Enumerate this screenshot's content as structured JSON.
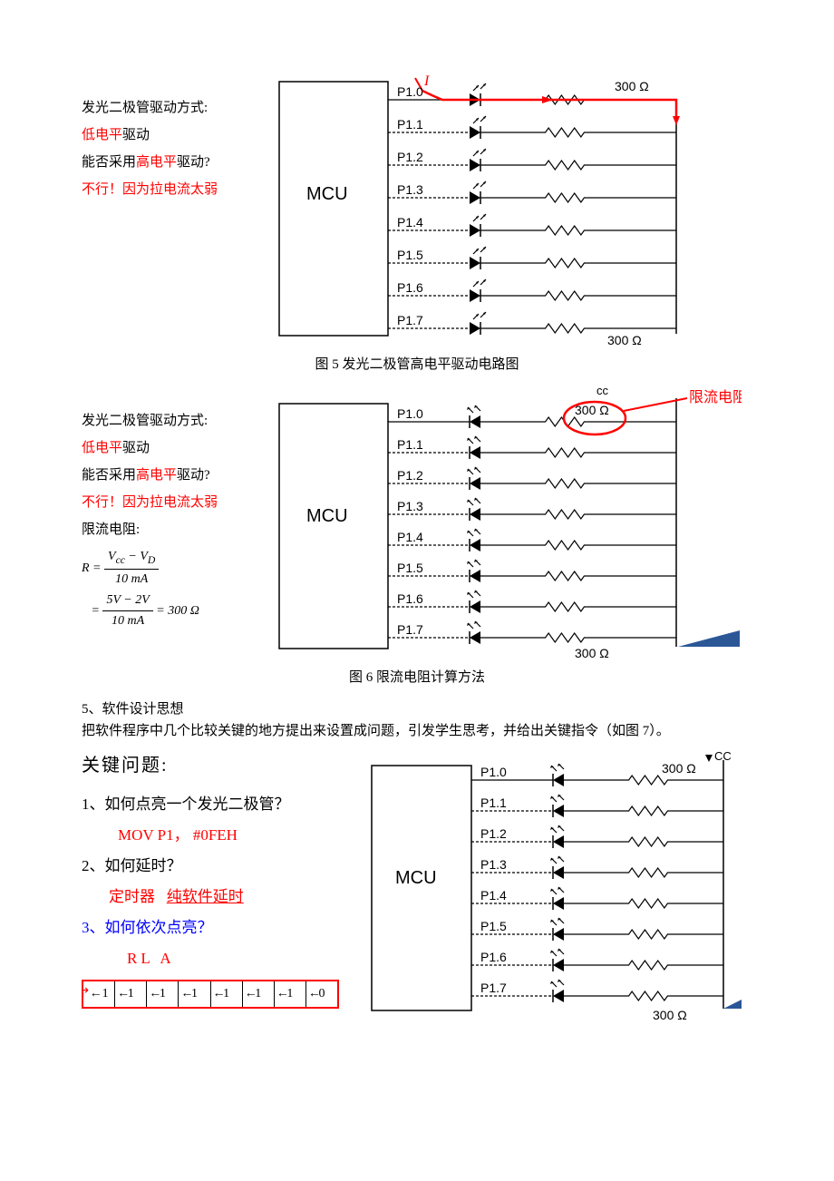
{
  "figures": {
    "fig5": {
      "type": "circuit-diagram",
      "side_text": {
        "line1_a": "发光二极管驱动方式:",
        "line2_red": "低电平",
        "line2_b": "驱动",
        "line3_a": "能否采用",
        "line3_red": "高电平",
        "line3_b": "驱动?",
        "line4_red": "不行！因为拉电流太弱"
      },
      "mcu_label": "MCU",
      "pins": [
        "P1.0",
        "P1.1",
        "P1.2",
        "P1.3",
        "P1.4",
        "P1.5",
        "P1.6",
        "P1.7"
      ],
      "current_label": "I",
      "resistor_top": "300 Ω",
      "resistor_bottom": "300 Ω",
      "caption": "图 5 发光二极管高电平驱动电路图",
      "colors": {
        "current_arrow": "#ff0000",
        "wire": "#000000"
      }
    },
    "fig6": {
      "type": "circuit-diagram",
      "side_text": {
        "line1_a": "发光二极管驱动方式:",
        "line2_red": "低电平",
        "line2_b": "驱动",
        "line3_a": "能否采用",
        "line3_red": "高电平",
        "line3_b": "驱动?",
        "line4_red": "不行！因为拉电流太弱",
        "line5": "限流电阻:"
      },
      "formula": {
        "lhs": "R =",
        "num1": "V",
        "sub1a": "cc",
        "minus": " − V",
        "sub1b": "D",
        "den1": "10 mA",
        "num2": "5V − 2V",
        "den2": "10 mA",
        "result": " = 300 Ω"
      },
      "callout": "限流电阻",
      "mcu_label": "MCU",
      "pins": [
        "P1.0",
        "P1.1",
        "P1.2",
        "P1.3",
        "P1.4",
        "P1.5",
        "P1.6",
        "P1.7"
      ],
      "cc_label": "cc",
      "resistor_top": "300 Ω",
      "resistor_bottom": "300 Ω",
      "caption": "图 6 限流电阻计算方法",
      "colors": {
        "circle": "#ff0000",
        "wire": "#000000",
        "corner": "#2b5797"
      }
    },
    "fig7": {
      "type": "circuit-diagram",
      "mcu_label": "MCU",
      "pins": [
        "P1.0",
        "P1.1",
        "P1.2",
        "P1.3",
        "P1.4",
        "P1.5",
        "P1.6",
        "P1.7"
      ],
      "cc_label": "CC",
      "resistor_top": "300 Ω",
      "resistor_bottom": "300 Ω"
    }
  },
  "section5": {
    "heading": "5、软件设计思想",
    "body": "把软件程序中几个比较关键的地方提出来设置成问题，引发学生思考，并给出关键指令（如图 7）。",
    "q_title": "关键问题:",
    "q1": "1、如何点亮一个发光二极管？",
    "a1": "MOV P1， #0FEH",
    "q2": "2、如何延时？",
    "a2_a": "定时器",
    "a2_b": "纯软件延时",
    "q3": "3、如何依次点亮？",
    "a3": "RL    A",
    "bits": [
      "1",
      "1",
      "1",
      "1",
      "1",
      "1",
      "1",
      "0"
    ]
  }
}
